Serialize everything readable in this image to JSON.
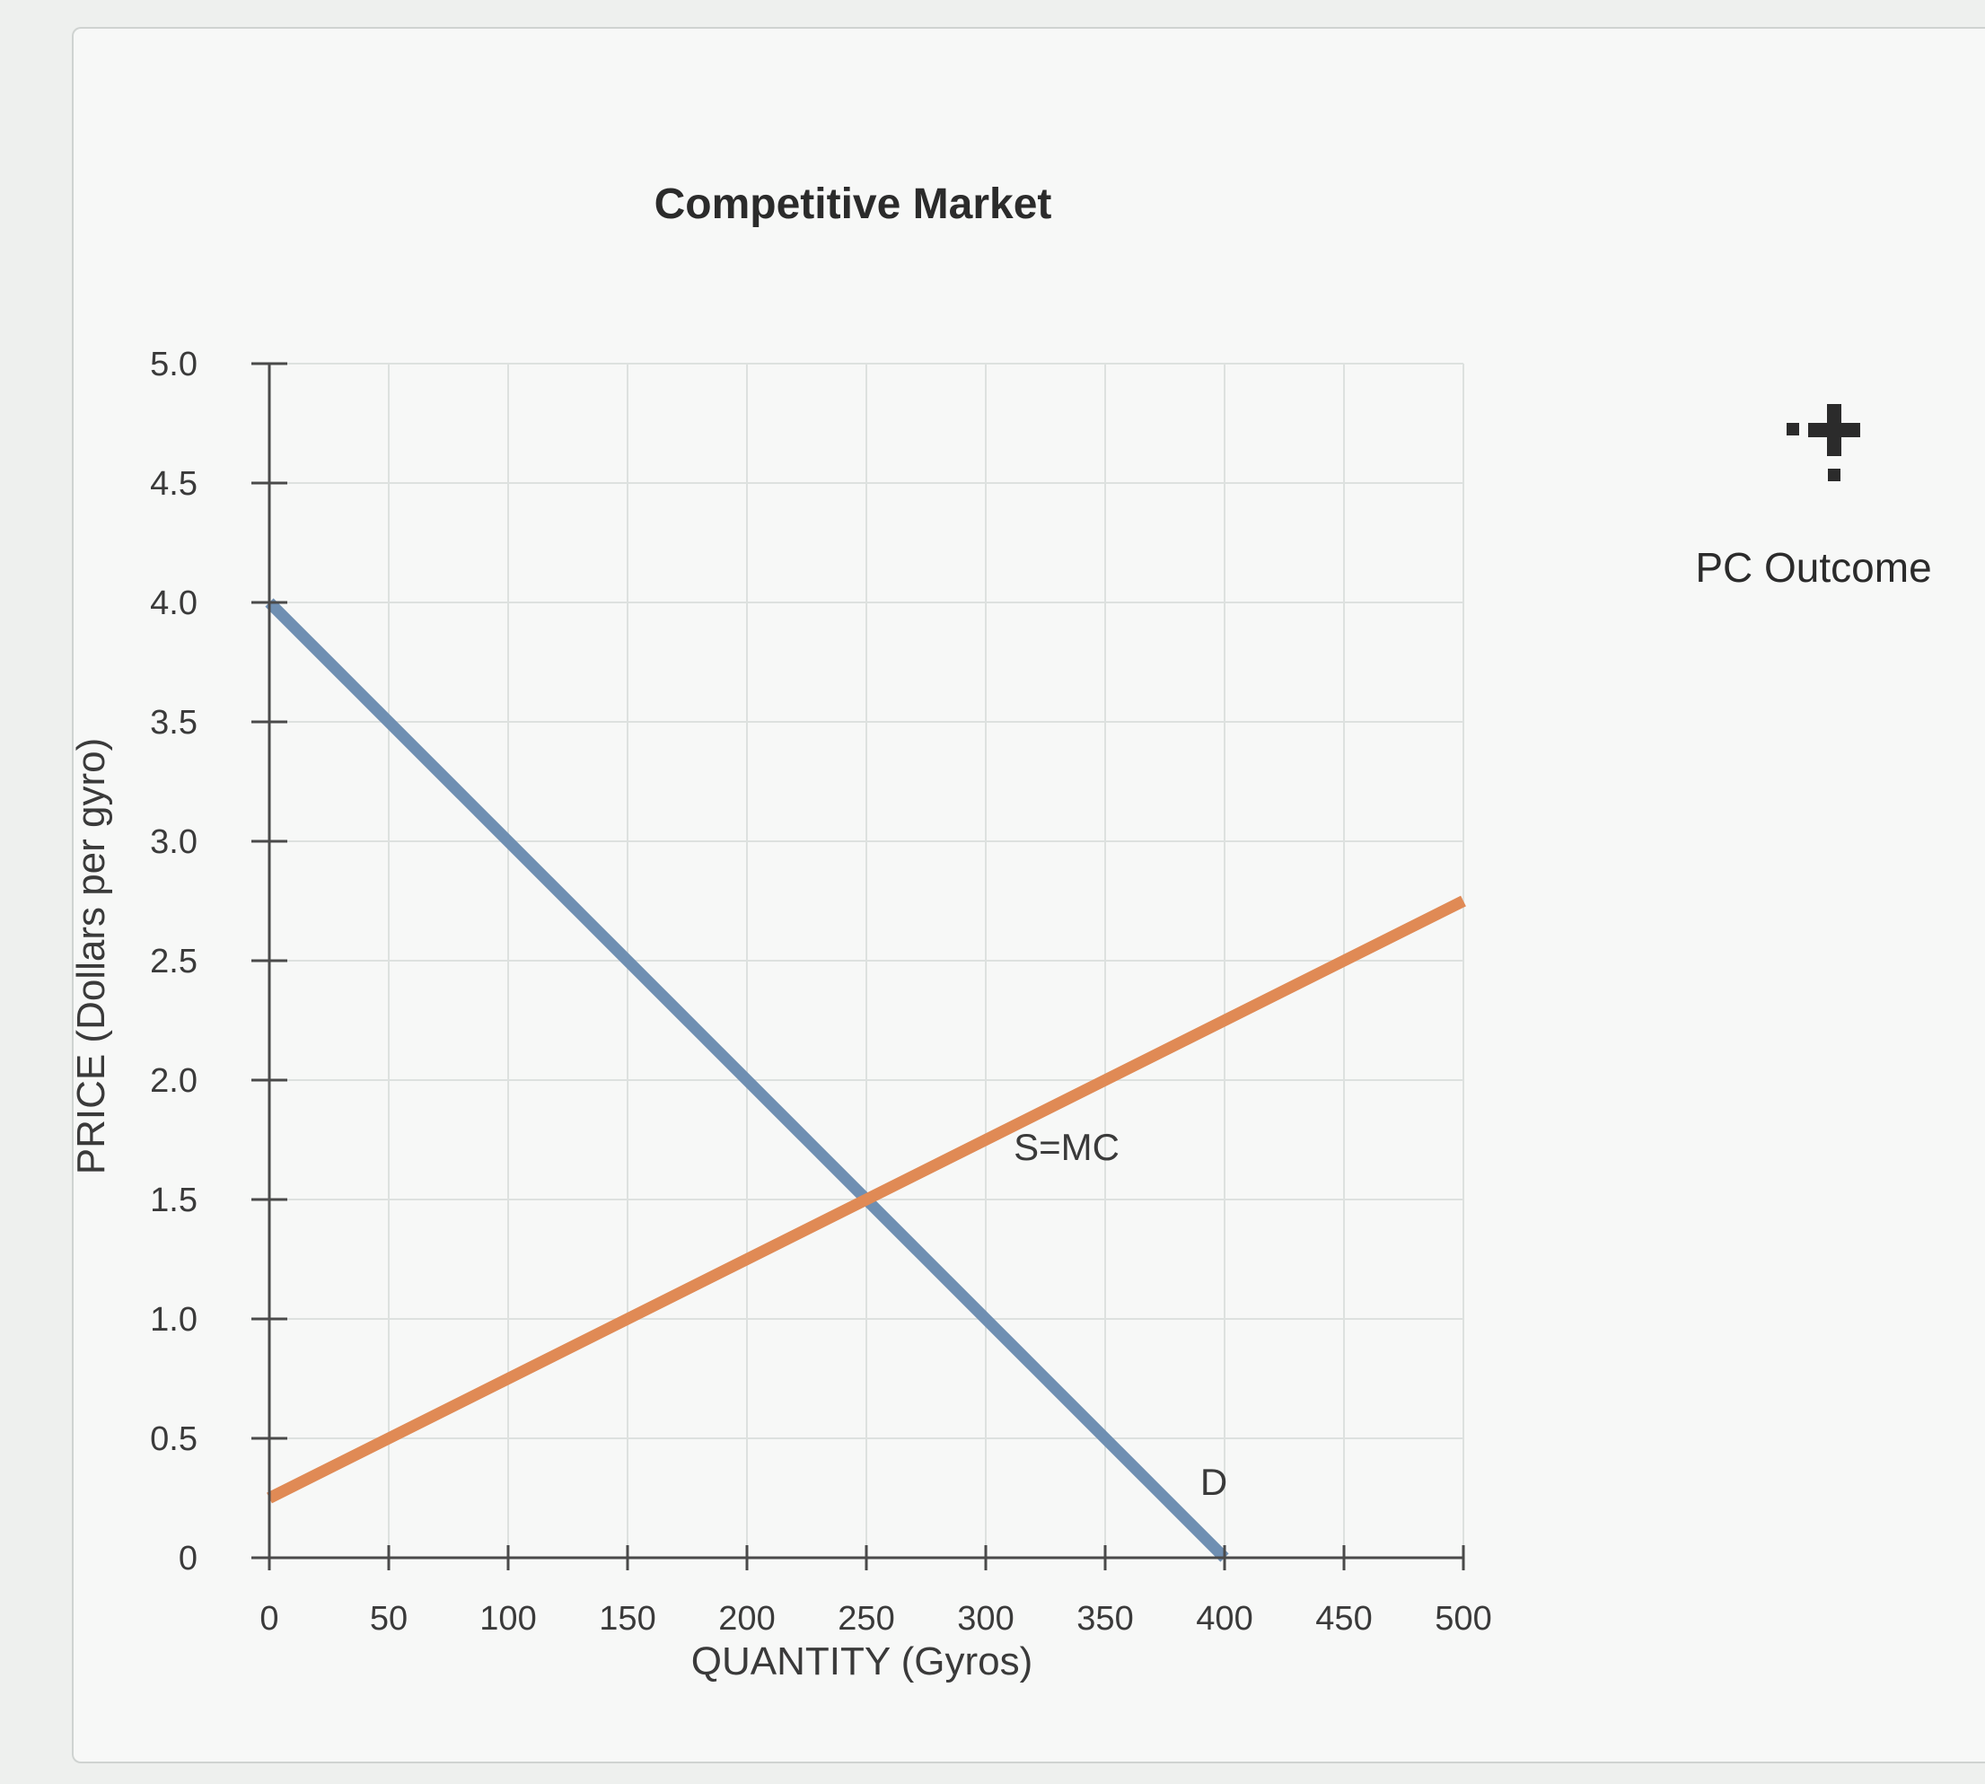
{
  "chart_data": {
    "type": "line",
    "title": "Competitive Market",
    "xlabel": "QUANTITY (Gyros)",
    "ylabel": "PRICE (Dollars per gyro)",
    "xlim": [
      0,
      500
    ],
    "ylim": [
      0,
      5
    ],
    "x_ticks": [
      0,
      50,
      100,
      150,
      200,
      250,
      300,
      350,
      400,
      450,
      500
    ],
    "y_ticks": [
      0,
      0.5,
      1.0,
      1.5,
      2.0,
      2.5,
      3.0,
      3.5,
      4.0,
      4.5,
      5.0
    ],
    "x_tick_labels": [
      "0",
      "50",
      "100",
      "150",
      "200",
      "250",
      "300",
      "350",
      "400",
      "450",
      "500"
    ],
    "y_tick_labels": [
      "0",
      "0.5",
      "1.0",
      "1.5",
      "2.0",
      "2.5",
      "3.0",
      "3.5",
      "4.0",
      "4.5",
      "5.0"
    ],
    "grid": true,
    "series": [
      {
        "name": "D",
        "color": "#6f8fb2",
        "x": [
          0,
          400
        ],
        "y": [
          4.0,
          0
        ]
      },
      {
        "name": "S=MC",
        "color": "#e08a55",
        "x": [
          0,
          500
        ],
        "y": [
          0.25,
          2.75
        ]
      }
    ]
  },
  "tool": {
    "icon": "plus-cross-icon",
    "label": "PC Outcome"
  }
}
